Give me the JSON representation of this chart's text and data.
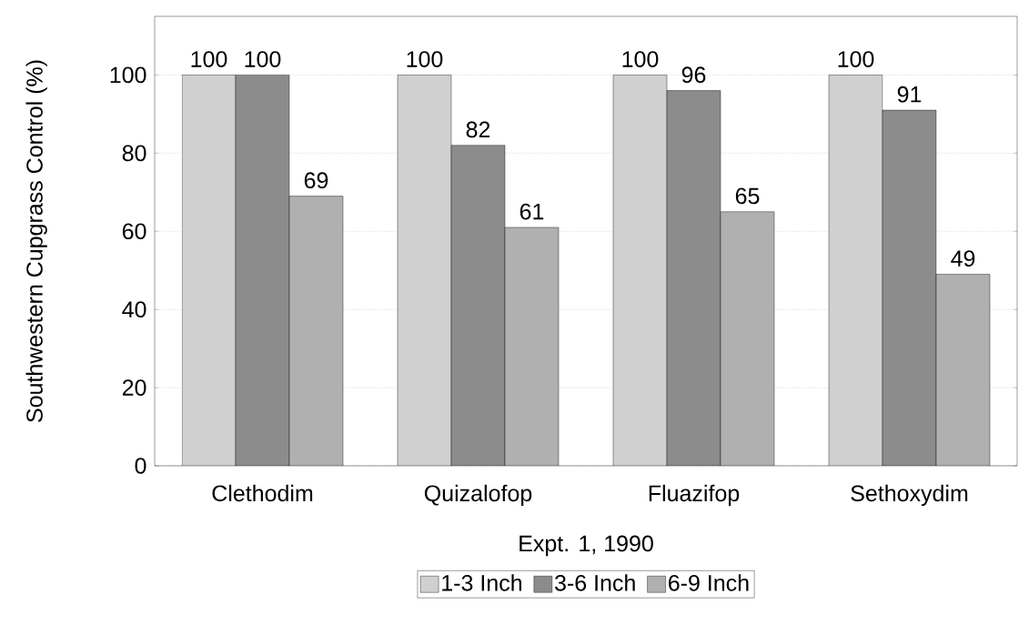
{
  "chart_data": {
    "type": "bar",
    "xlabel": "Expt. 1, 1990",
    "ylabel": "Southwestern Cupgrass Control (%)",
    "categories": [
      "Clethodim",
      "Quizalofop",
      "Fluazifop",
      "Sethoxydim"
    ],
    "series": [
      {
        "name": "1-3 Inch",
        "color": "#d0d0d0",
        "values": [
          100,
          100,
          100,
          100
        ]
      },
      {
        "name": "3-6 Inch",
        "color": "#8c8c8c",
        "values": [
          100,
          82,
          96,
          91
        ]
      },
      {
        "name": "6-9 Inch",
        "color": "#b0b0b0",
        "values": [
          69,
          61,
          65,
          49
        ]
      }
    ],
    "ylim": [
      0,
      115
    ],
    "yticks": [
      0,
      20,
      40,
      60,
      80,
      100
    ],
    "grid": "y",
    "legend": "bottom",
    "data_labels": true
  }
}
